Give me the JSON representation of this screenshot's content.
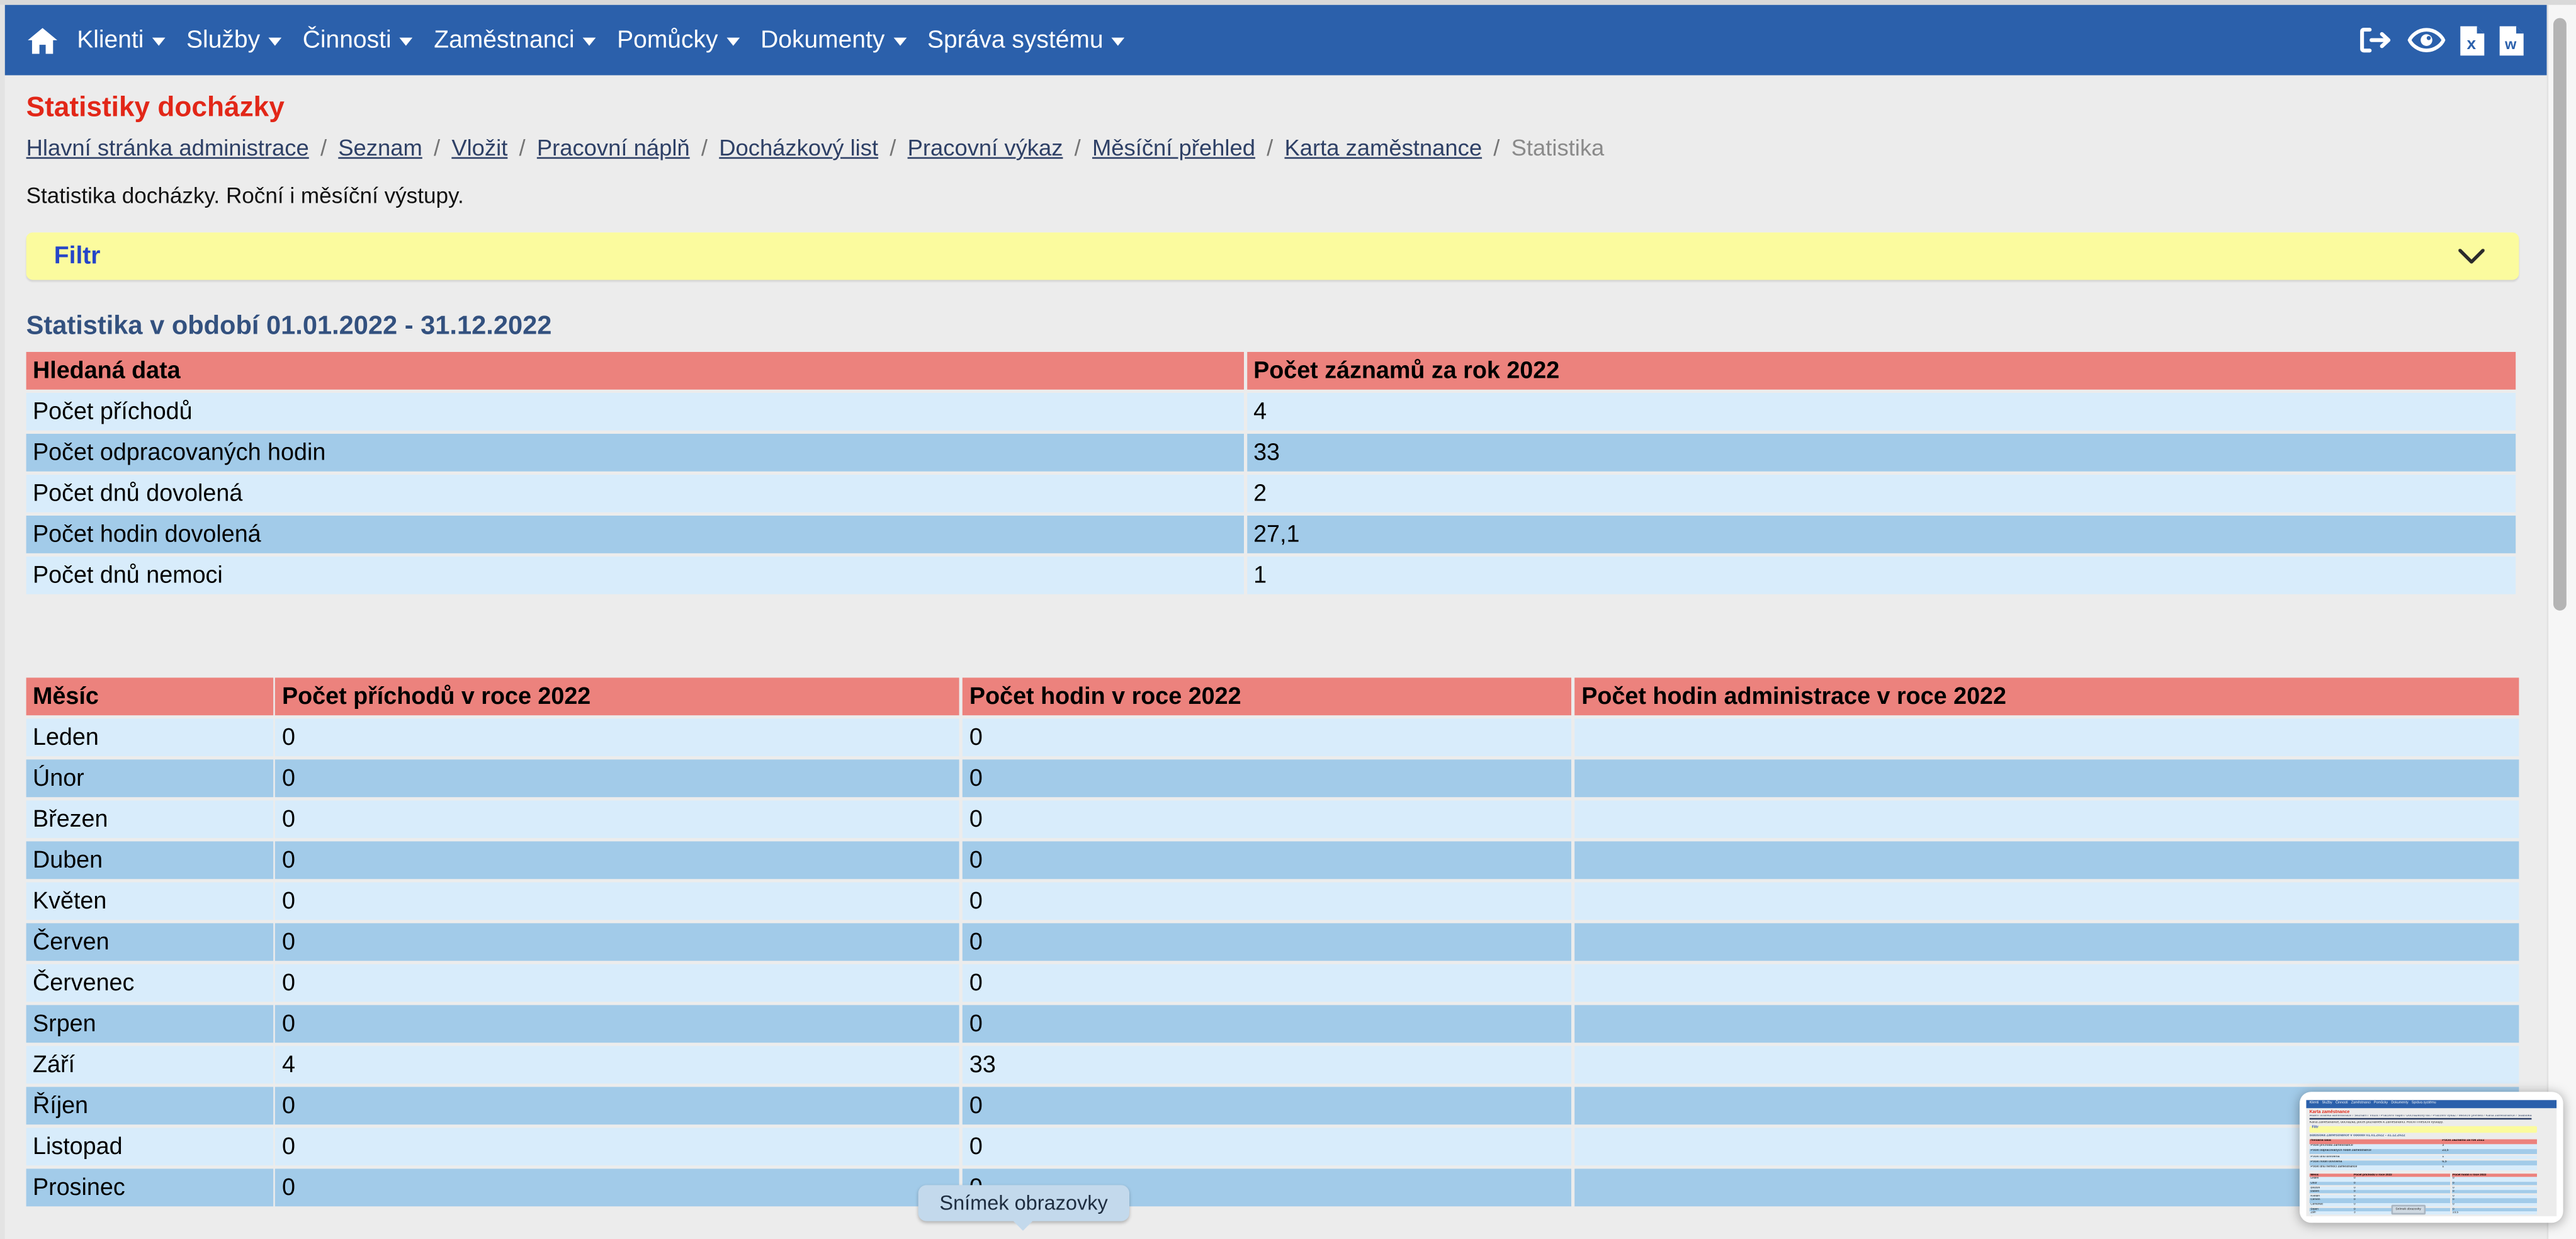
{
  "colors": {
    "navbar": "#2b60ab",
    "table_header": "#ec827d",
    "row_light": "#d8ecfb",
    "row_dark": "#a2cbe9",
    "filter_bg": "#fbfb9e",
    "title_red": "#e22718",
    "heading_blue": "#33517f",
    "link_navy": "#2e4066",
    "filter_label_blue": "#2545c8",
    "tooltip_bg": "#c3d9ec"
  },
  "navbar": {
    "menu": [
      {
        "label": "Klienti"
      },
      {
        "label": "Služby"
      },
      {
        "label": "Činnosti"
      },
      {
        "label": "Zaměstnanci"
      },
      {
        "label": "Pomůcky"
      },
      {
        "label": "Dokumenty"
      },
      {
        "label": "Správa systému"
      }
    ]
  },
  "page": {
    "title": "Statistiky docházky",
    "breadcrumb": {
      "links": [
        "Hlavní stránka administrace",
        "Seznam",
        "Vložit",
        "Pracovní náplň",
        "Docházkový list",
        "Pracovní výkaz",
        "Měsíční přehled",
        "Karta zaměstnance"
      ],
      "current": "Statistika",
      "separator": "/"
    },
    "description": "Statistika docházky. Roční i měsíční výstupy.",
    "filter_label": "Filtr",
    "section_heading": "Statistika v období 01.01.2022 - 31.12.2022"
  },
  "summary_table": {
    "headers": [
      "Hledaná data",
      "Počet záznamů za rok 2022"
    ],
    "rows": [
      [
        "Počet příchodů",
        "4"
      ],
      [
        "Počet odpracovaných hodin",
        "33"
      ],
      [
        "Počet dnů dovolená",
        "2"
      ],
      [
        "Počet hodin dovolená",
        "27,1"
      ],
      [
        "Počet dnů nemoci",
        "1"
      ]
    ]
  },
  "monthly_table": {
    "headers": [
      "Měsíc",
      "Počet příchodů v roce 2022",
      "Počet hodin v roce 2022",
      "Počet hodin administrace v roce 2022"
    ],
    "rows": [
      [
        "Leden",
        "0",
        "0",
        ""
      ],
      [
        "Únor",
        "0",
        "0",
        ""
      ],
      [
        "Březen",
        "0",
        "0",
        ""
      ],
      [
        "Duben",
        "0",
        "0",
        ""
      ],
      [
        "Květen",
        "0",
        "0",
        ""
      ],
      [
        "Červen",
        "0",
        "0",
        ""
      ],
      [
        "Červenec",
        "0",
        "0",
        ""
      ],
      [
        "Srpen",
        "0",
        "0",
        ""
      ],
      [
        "Září",
        "4",
        "33",
        ""
      ],
      [
        "Říjen",
        "0",
        "0",
        ""
      ],
      [
        "Listopad",
        "0",
        "0",
        ""
      ],
      [
        "Prosinec",
        "0",
        "0",
        ""
      ]
    ]
  },
  "tooltip": {
    "label": "Snímek obrazovky"
  },
  "thumbnail": {
    "title": "Karta zaměstnance",
    "breadcrumb_text": "Hlavní stránka administrace / Seznam / Vložit / Pracovní náplň / Docházkový list / Pracovní výkaz / Měsíční přehled / Karta zaměstnance / Statistika",
    "description": "Karta zaměstnance, docházka, počet poznámek k zaměstnanci. Roční i měsíční výstupy.",
    "filter_label": "Filtr",
    "heading": "Statistika Zaměstnance v období 01.01.2022 - 31.12.2022",
    "summary_table": {
      "headers": [
        "Hledaná data",
        "Počet záznamů za rok 2022"
      ],
      "rows": [
        [
          "Počet příchodů zaměstnance",
          "3"
        ],
        [
          "Počet odpracovaných hodin zaměstnance",
          "23,5"
        ],
        [
          "Počet dnů dovolená",
          "1"
        ],
        [
          "Počet hodin dovolená",
          "6,5"
        ],
        [
          "Počet dnů nemoci zaměstnance",
          "1"
        ]
      ]
    },
    "monthly_table": {
      "headers": [
        "Měsíc",
        "Počet příchodů v roce 2022",
        "Počet hodin v roce 2022"
      ],
      "rows": [
        [
          "Leden",
          "0",
          "0"
        ],
        [
          "Únor",
          "0",
          "0"
        ],
        [
          "Březen",
          "0",
          "0"
        ],
        [
          "Duben",
          "0",
          "0"
        ],
        [
          "Květen",
          "0",
          "0"
        ],
        [
          "Červen",
          "0",
          "0"
        ],
        [
          "Červenec",
          "0",
          "0"
        ],
        [
          "Srpen",
          "0",
          "0"
        ],
        [
          "Září",
          "3",
          "23,5"
        ],
        [
          "Říjen",
          "0",
          "0"
        ],
        [
          "Listopad",
          "0",
          "0"
        ],
        [
          "Prosinec",
          "0",
          "0"
        ]
      ]
    },
    "tooltip": "Snímek obrazovky"
  }
}
